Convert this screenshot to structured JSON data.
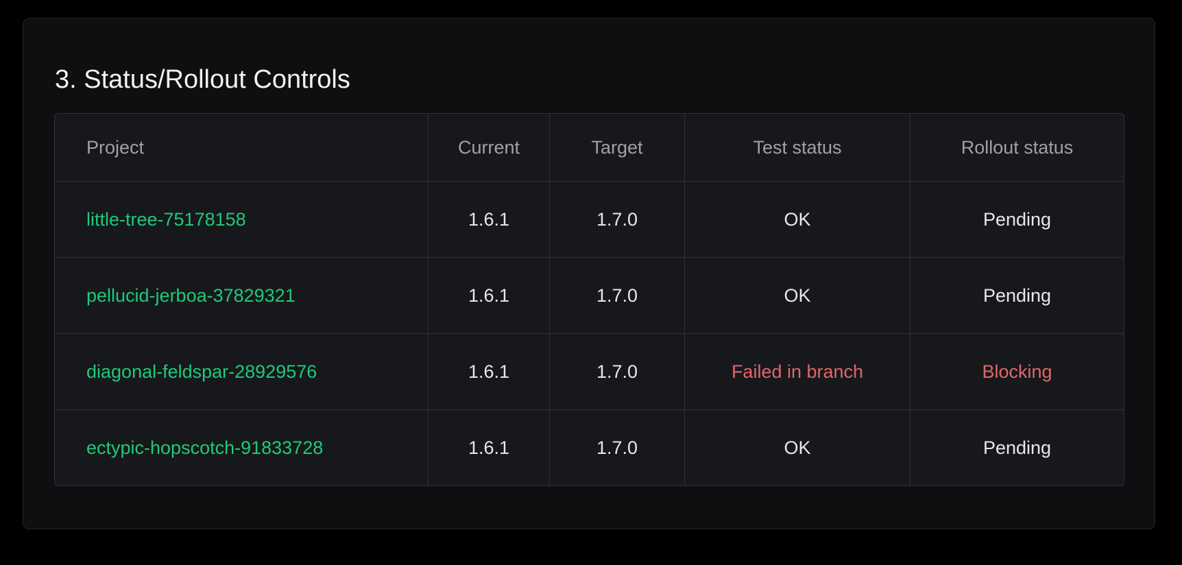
{
  "section": {
    "title": "3. Status/Rollout Controls"
  },
  "colors": {
    "link": "#1ec97b",
    "error": "#e0676b"
  },
  "table": {
    "headers": [
      "Project",
      "Current",
      "Target",
      "Test status",
      "Rollout status"
    ],
    "rows": [
      {
        "project": "little-tree-75178158",
        "current": "1.6.1",
        "target": "1.7.0",
        "test_status": "OK",
        "rollout_status": "Pending",
        "failed": false
      },
      {
        "project": "pellucid-jerboa-37829321",
        "current": "1.6.1",
        "target": "1.7.0",
        "test_status": "OK",
        "rollout_status": "Pending",
        "failed": false
      },
      {
        "project": "diagonal-feldspar-28929576",
        "current": "1.6.1",
        "target": "1.7.0",
        "test_status": "Failed in branch",
        "rollout_status": "Blocking",
        "failed": true
      },
      {
        "project": "ectypic-hopscotch-91833728",
        "current": "1.6.1",
        "target": "1.7.0",
        "test_status": "OK",
        "rollout_status": "Pending",
        "failed": false
      }
    ]
  }
}
